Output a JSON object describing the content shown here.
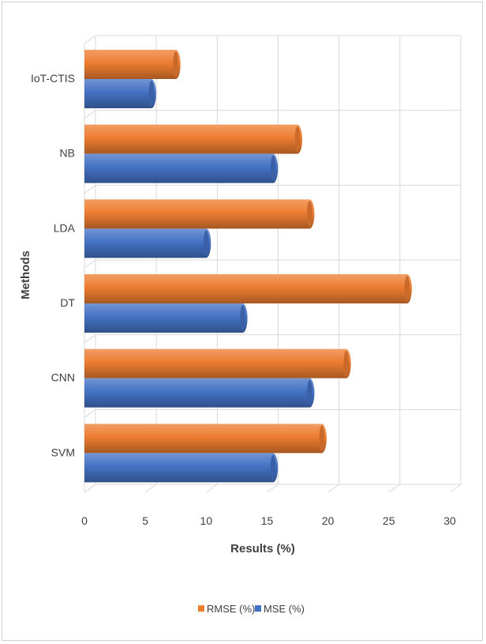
{
  "chart_data": {
    "type": "bar",
    "orientation": "horizontal",
    "style": "3d-cylinder",
    "categories": [
      "IoT-CTIS",
      "NB",
      "LDA",
      "DT",
      "CNN",
      "SVM"
    ],
    "series": [
      {
        "name": "RMSE (%)",
        "color": "#ED7D31",
        "values": [
          7.5,
          17.5,
          18.5,
          26.5,
          21.5,
          19.5
        ]
      },
      {
        "name": "MSE (%)",
        "color": "#4472C4",
        "values": [
          5.5,
          15.5,
          10,
          13,
          18.5,
          15.5
        ]
      }
    ],
    "xlabel": "Results (%)",
    "ylabel": "Methods",
    "xlim": [
      0,
      30
    ],
    "xticks": [
      "0",
      "5",
      "10",
      "15",
      "20",
      "25",
      "30"
    ],
    "grid": true,
    "legend_position": "bottom"
  }
}
